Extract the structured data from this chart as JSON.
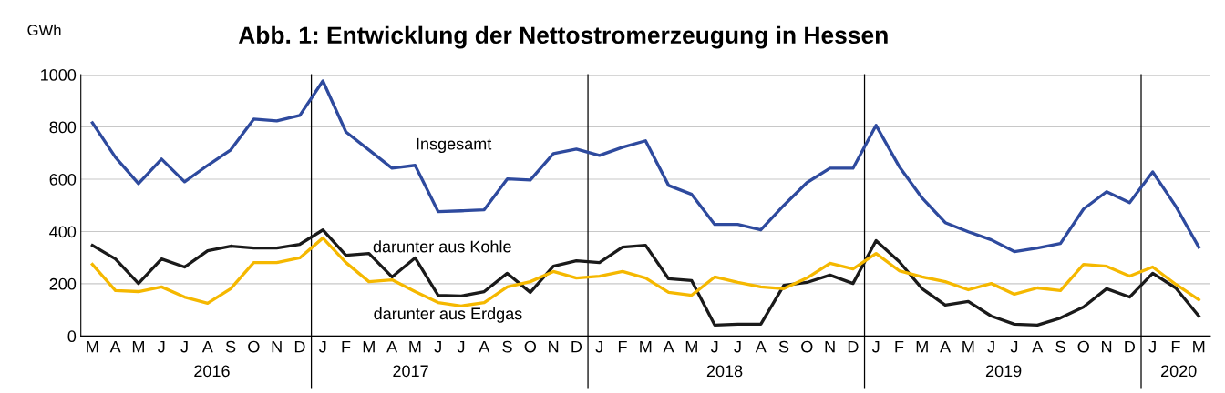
{
  "chart_data": {
    "type": "line",
    "title": "Abb. 1: Entwicklung der Nettostromerzeugung in Hessen",
    "ylabel": "GWh",
    "categories": [
      "M",
      "A",
      "M",
      "J",
      "J",
      "A",
      "S",
      "O",
      "N",
      "D",
      "J",
      "F",
      "M",
      "A",
      "M",
      "J",
      "J",
      "A",
      "S",
      "O",
      "N",
      "D",
      "J",
      "F",
      "M",
      "A",
      "M",
      "J",
      "J",
      "A",
      "S",
      "O",
      "N",
      "D",
      "J",
      "F",
      "M",
      "A",
      "M",
      "J",
      "J",
      "A",
      "S",
      "O",
      "N",
      "D",
      "J",
      "F",
      "M"
    ],
    "series": [
      {
        "color": "#2e4a9e",
        "values": [
          816,
          684,
          583,
          677,
          590,
          653,
          712,
          830,
          823,
          844,
          976,
          781,
          712,
          642,
          653,
          476,
          479,
          483,
          601,
          597,
          698,
          715,
          691,
          722,
          747,
          576,
          542,
          427,
          427,
          406,
          500,
          587,
          642,
          642,
          806,
          649,
          528,
          434,
          399,
          368,
          323,
          337,
          354,
          486,
          552,
          510,
          628,
          497,
          340
        ]
      },
      {
        "color": "#1a1a1a",
        "values": [
          347,
          295,
          201,
          295,
          264,
          326,
          344,
          337,
          337,
          351,
          406,
          309,
          316,
          226,
          299,
          156,
          153,
          170,
          240,
          167,
          267,
          288,
          281,
          340,
          347,
          219,
          212,
          42,
          45,
          45,
          194,
          205,
          233,
          201,
          365,
          285,
          181,
          118,
          132,
          76,
          45,
          42,
          69,
          111,
          181,
          149,
          240,
          184,
          76
        ]
      },
      {
        "color": "#f5b800",
        "values": [
          274,
          174,
          170,
          188,
          149,
          125,
          181,
          281,
          281,
          299,
          375,
          281,
          208,
          215,
          170,
          128,
          115,
          128,
          188,
          208,
          247,
          222,
          229,
          247,
          222,
          167,
          156,
          226,
          205,
          188,
          181,
          222,
          278,
          257,
          316,
          250,
          226,
          208,
          177,
          201,
          160,
          184,
          174,
          274,
          267,
          229,
          264,
          198,
          139
        ]
      }
    ],
    "ylim": [
      0,
      1000
    ],
    "yticks": [
      0,
      200,
      400,
      600,
      800,
      1000
    ],
    "grid": "y",
    "legend": false,
    "marker": "none",
    "line_style": "solid",
    "annotations": [
      "Insgesamt",
      "darunter aus Kohle",
      "darunter aus Erdgas",
      "2016",
      "2017",
      "2018",
      "2019",
      "2020"
    ]
  }
}
